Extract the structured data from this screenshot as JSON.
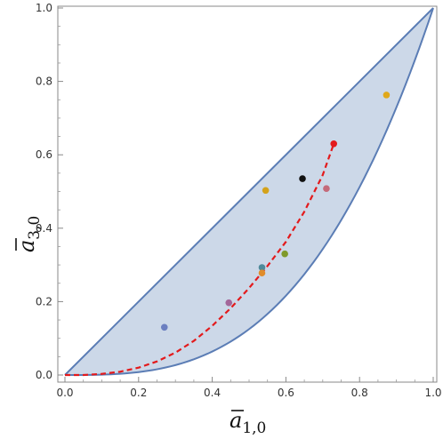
{
  "chart_data": {
    "type": "scatter",
    "title": "",
    "xlabel": {
      "main": "a",
      "sub": "1,0"
    },
    "ylabel": {
      "main": "a",
      "sub": "3,0"
    },
    "xlim": [
      0,
      1
    ],
    "ylim": [
      0,
      1
    ],
    "x_ticks": [
      "0.0",
      "0.2",
      "0.4",
      "0.6",
      "0.8",
      "1.0"
    ],
    "y_ticks": [
      "0.0",
      "0.2",
      "0.4",
      "0.6",
      "0.8",
      "1.0"
    ],
    "grid": false,
    "legend": "none",
    "region": {
      "upper_boundary": "y = x",
      "lower_boundary": "y = x^3",
      "fill_color": "#ccd8e8",
      "edge_color": "#5b7db5"
    },
    "curve": {
      "style": "dashed",
      "color": "#e31a1c",
      "x": [
        0.0,
        0.05,
        0.1,
        0.15,
        0.2,
        0.25,
        0.3,
        0.35,
        0.4,
        0.45,
        0.5,
        0.55,
        0.6,
        0.65,
        0.7,
        0.73
      ],
      "y": [
        0.0,
        0.0,
        0.003,
        0.009,
        0.02,
        0.037,
        0.061,
        0.093,
        0.134,
        0.182,
        0.237,
        0.297,
        0.363,
        0.445,
        0.545,
        0.63
      ]
    },
    "points": [
      {
        "x": 0.27,
        "y": 0.13,
        "color": "#6b7fc0"
      },
      {
        "x": 0.445,
        "y": 0.197,
        "color": "#a3679a"
      },
      {
        "x": 0.535,
        "y": 0.293,
        "color": "#4f8a9a"
      },
      {
        "x": 0.535,
        "y": 0.278,
        "color": "#e08c2a"
      },
      {
        "x": 0.545,
        "y": 0.503,
        "color": "#d4a21a"
      },
      {
        "x": 0.597,
        "y": 0.33,
        "color": "#7f9a2a"
      },
      {
        "x": 0.645,
        "y": 0.535,
        "color": "#111111"
      },
      {
        "x": 0.71,
        "y": 0.508,
        "color": "#c46a7a"
      },
      {
        "x": 0.73,
        "y": 0.63,
        "color": "#e31a1c"
      },
      {
        "x": 0.873,
        "y": 0.763,
        "color": "#e0a81a"
      }
    ]
  }
}
